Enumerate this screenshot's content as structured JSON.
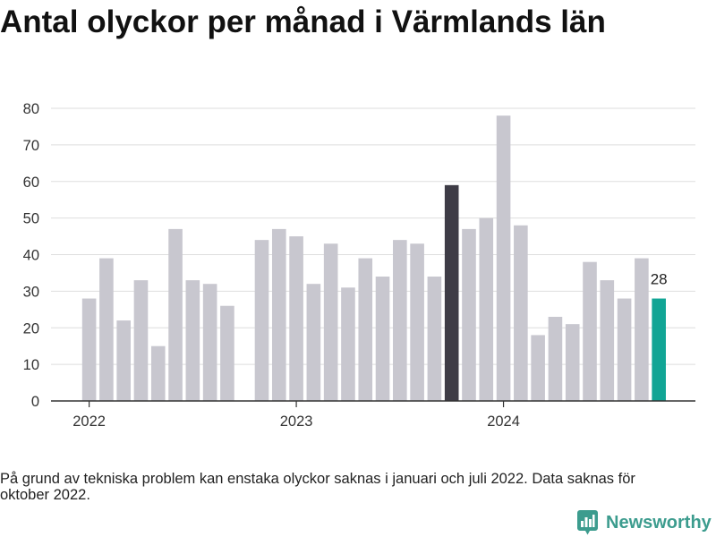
{
  "chart_data": {
    "type": "bar",
    "title": "Antal olyckor per månad i Värmlands län",
    "x": [
      "2022-01",
      "2022-02",
      "2022-03",
      "2022-04",
      "2022-05",
      "2022-06",
      "2022-07",
      "2022-08",
      "2022-09",
      "2022-10",
      "2022-11",
      "2022-12",
      "2023-01",
      "2023-02",
      "2023-03",
      "2023-04",
      "2023-05",
      "2023-06",
      "2023-07",
      "2023-08",
      "2023-09",
      "2023-10",
      "2023-11",
      "2023-12",
      "2024-01",
      "2024-02",
      "2024-03",
      "2024-04",
      "2024-05",
      "2024-06",
      "2024-07",
      "2024-08",
      "2024-09",
      "2024-10"
    ],
    "values": [
      28,
      39,
      22,
      33,
      15,
      47,
      33,
      32,
      26,
      null,
      44,
      47,
      45,
      32,
      43,
      31,
      39,
      34,
      44,
      43,
      34,
      59,
      47,
      50,
      78,
      48,
      18,
      23,
      21,
      38,
      33,
      28,
      39,
      28
    ],
    "ylim": [
      0,
      80
    ],
    "yticks": [
      0,
      10,
      20,
      30,
      40,
      50,
      60,
      70,
      80
    ],
    "xticks": [
      {
        "at": "2022-01",
        "label": "2022"
      },
      {
        "at": "2023-01",
        "label": "2023"
      },
      {
        "at": "2024-01",
        "label": "2024"
      }
    ],
    "grid": true,
    "bar_color": "#c8c7cf",
    "highlights": [
      {
        "x": "2023-10",
        "color": "#3e3c46"
      },
      {
        "x": "2024-10",
        "color": "#11a595"
      }
    ],
    "data_labels": [
      {
        "x": "2024-10",
        "label": "28"
      }
    ]
  },
  "footnote": "På grund av tekniska problem kan enstaka olyckor saknas i januari och juli 2022. Data saknas för oktober 2022.",
  "brand": {
    "name": "Newsworthy",
    "icon": "newsworthy-logo-icon",
    "color": "#3c9c8e"
  }
}
